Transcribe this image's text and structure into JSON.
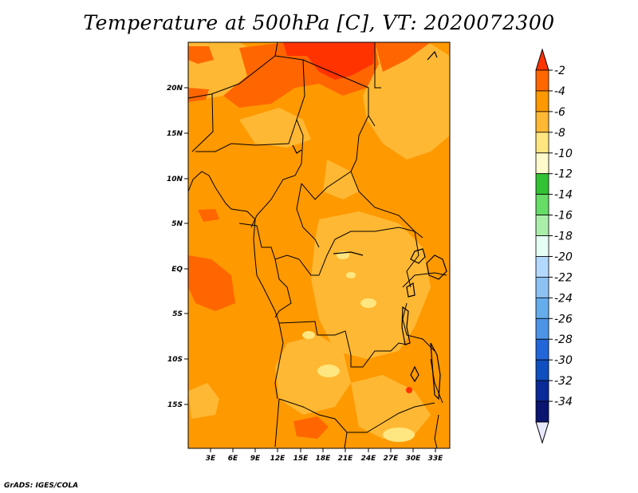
{
  "title": "Temperature at 500hPa [C], VT: 2020072300",
  "credit": "GrADS: IGES/COLA",
  "map": {
    "lat_ticks": [
      "20N",
      "15N",
      "10N",
      "5N",
      "EQ",
      "5S",
      "10S",
      "15S"
    ],
    "lon_ticks": [
      "3E",
      "6E",
      "9E",
      "12E",
      "15E",
      "18E",
      "21E",
      "24E",
      "27E",
      "30E",
      "33E"
    ],
    "region": "Central Africa",
    "colors": {
      "-2_-4": "#ff6600",
      "-4_-6": "#ff9900",
      "-6_-8": "#ffb833",
      "-8_-10": "#ffe680",
      "above_-2": "#ff3300",
      "border": "#000000"
    }
  },
  "colorbar": {
    "labels": [
      "-2",
      "-4",
      "-6",
      "-8",
      "-10",
      "-12",
      "-14",
      "-16",
      "-18",
      "-20",
      "-22",
      "-24",
      "-26",
      "-28",
      "-30",
      "-32",
      "-34"
    ],
    "colors": [
      "#ff3300",
      "#ff6600",
      "#ff9900",
      "#ffb833",
      "#ffe680",
      "#fffacc",
      "#33c233",
      "#66dd66",
      "#aaeeaa",
      "#e6fff5",
      "#b3d9ff",
      "#8cc2f2",
      "#66adee",
      "#4d94e6",
      "#2266d9",
      "#0f4fbf",
      "#0a2a99",
      "#0a1570",
      "#e8e8ff"
    ]
  }
}
